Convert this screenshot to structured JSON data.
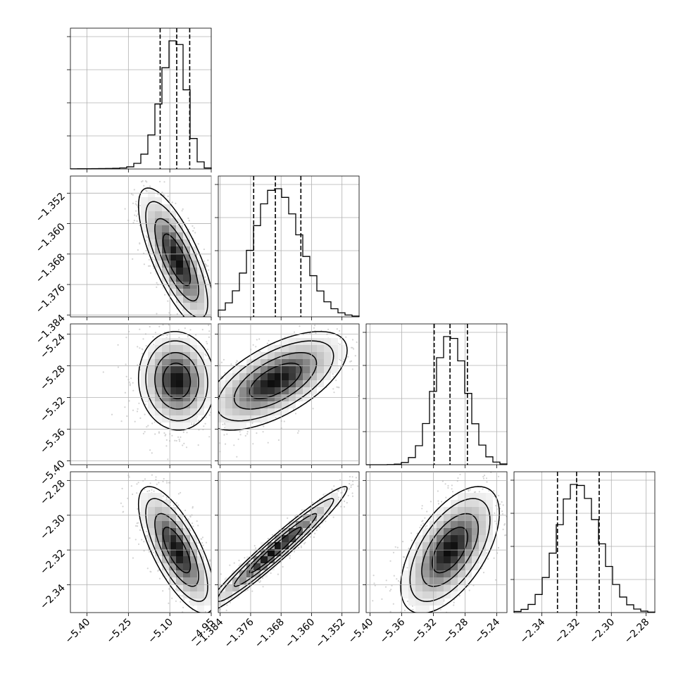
{
  "chart_data": {
    "type": "corner",
    "grid": true,
    "params": [
      {
        "range": [
          -5.46,
          -4.95
        ],
        "ticks": [
          -5.4,
          -5.25,
          -5.1,
          -4.95
        ],
        "tick_labels": [
          "−5.40",
          "−5.25",
          "−5.10",
          "−4.95"
        ],
        "quantiles": [
          -5.135,
          -5.075,
          -5.028
        ],
        "median": -5.075,
        "sd_left": 0.055,
        "sd_right": 0.036
      },
      {
        "range": [
          -1.3845,
          -1.3475
        ],
        "ticks": [
          -1.384,
          -1.376,
          -1.368,
          -1.36,
          -1.352
        ],
        "tick_labels": [
          "−1.384",
          "−1.376",
          "−1.368",
          "−1.360",
          "−1.352"
        ],
        "quantiles": [
          -1.3752,
          -1.3695,
          -1.3628
        ],
        "median": -1.3695,
        "sd_left": 0.0058,
        "sd_right": 0.0066
      },
      {
        "range": [
          -5.405,
          -5.227
        ],
        "ticks": [
          -5.4,
          -5.36,
          -5.32,
          -5.28,
          -5.24
        ],
        "tick_labels": [
          "−5.40",
          "−5.36",
          "−5.32",
          "−5.28",
          "−5.24"
        ],
        "quantiles": [
          -5.319,
          -5.299,
          -5.277
        ],
        "median": -5.299,
        "sd_left": 0.02,
        "sd_right": 0.021
      },
      {
        "range": [
          -2.356,
          -2.275
        ],
        "ticks": [
          -2.34,
          -2.32,
          -2.3,
          -2.28
        ],
        "tick_labels": [
          "−2.34",
          "−2.32",
          "−2.30",
          "−2.28"
        ],
        "quantiles": [
          -2.331,
          -2.32,
          -2.307
        ],
        "median": -2.32,
        "sd_left": 0.011,
        "sd_right": 0.013
      }
    ],
    "correlations": [
      {
        "i": 1,
        "j": 0,
        "r": -0.75
      },
      {
        "i": 2,
        "j": 0,
        "r": -0.05
      },
      {
        "i": 2,
        "j": 1,
        "r": 0.62
      },
      {
        "i": 3,
        "j": 0,
        "r": -0.72
      },
      {
        "i": 3,
        "j": 1,
        "r": 0.97
      },
      {
        "i": 3,
        "j": 2,
        "r": 0.58
      }
    ]
  }
}
